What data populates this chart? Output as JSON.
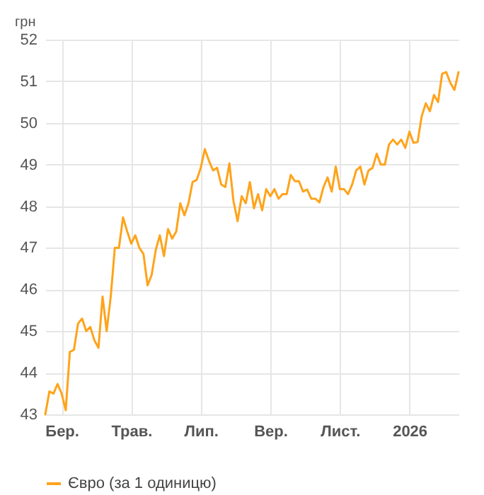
{
  "chart_data": {
    "type": "line",
    "ylabel": "грн",
    "categories": [
      null,
      null,
      null,
      null,
      "Бер.",
      null,
      null,
      null,
      null,
      null,
      null,
      null,
      null,
      null,
      null,
      null,
      null,
      null,
      null,
      null,
      null,
      "Трав.",
      null,
      null,
      null,
      null,
      null,
      null,
      null,
      null,
      null,
      null,
      null,
      null,
      null,
      null,
      null,
      null,
      "Лип.",
      null,
      null,
      null,
      null,
      null,
      null,
      null,
      null,
      null,
      null,
      null,
      null,
      null,
      null,
      null,
      null,
      "Вер.",
      null,
      null,
      null,
      null,
      null,
      null,
      null,
      null,
      null,
      null,
      null,
      null,
      null,
      null,
      null,
      null,
      "Лист.",
      null,
      null,
      null,
      null,
      null,
      null,
      null,
      null,
      null,
      null,
      null,
      null,
      null,
      null,
      null,
      null,
      "2026",
      null,
      null,
      null,
      null,
      null,
      null,
      null,
      null,
      null,
      null,
      null,
      null
    ],
    "series": [
      {
        "name": "Євро (за 1 одиницю)",
        "color": "#ffa31a",
        "values": [
          43.0,
          43.55,
          43.5,
          43.73,
          43.5,
          43.1,
          44.5,
          44.55,
          45.18,
          45.3,
          45.0,
          45.1,
          44.78,
          44.6,
          45.83,
          45.0,
          45.83,
          47.0,
          47.0,
          47.73,
          47.4,
          47.1,
          47.3,
          47.0,
          46.85,
          46.1,
          46.35,
          46.95,
          47.3,
          46.8,
          47.45,
          47.22,
          47.39,
          48.07,
          47.78,
          48.07,
          48.58,
          48.63,
          48.92,
          49.37,
          49.09,
          48.86,
          48.92,
          48.52,
          48.46,
          49.03,
          48.12,
          47.64,
          48.24,
          48.07,
          48.58,
          47.95,
          48.29,
          47.9,
          48.41,
          48.24,
          48.41,
          48.18,
          48.29,
          48.29,
          48.75,
          48.6,
          48.6,
          48.35,
          48.4,
          48.18,
          48.18,
          48.09,
          48.46,
          48.69,
          48.35,
          48.95,
          48.41,
          48.41,
          48.29,
          48.52,
          48.86,
          48.95,
          48.52,
          48.86,
          48.92,
          49.26,
          49.0,
          49.0,
          49.48,
          49.6,
          49.48,
          49.6,
          49.4,
          49.79,
          49.52,
          49.54,
          50.16,
          50.47,
          50.28,
          50.67,
          50.5,
          51.18,
          51.22,
          50.96,
          50.79,
          51.22
        ]
      }
    ],
    "ylim": [
      43,
      52
    ],
    "yticks": [
      43,
      44,
      45,
      46,
      47,
      48,
      49,
      50,
      51,
      52
    ],
    "grid": true,
    "legend": "bottom",
    "line_style": "solid"
  }
}
